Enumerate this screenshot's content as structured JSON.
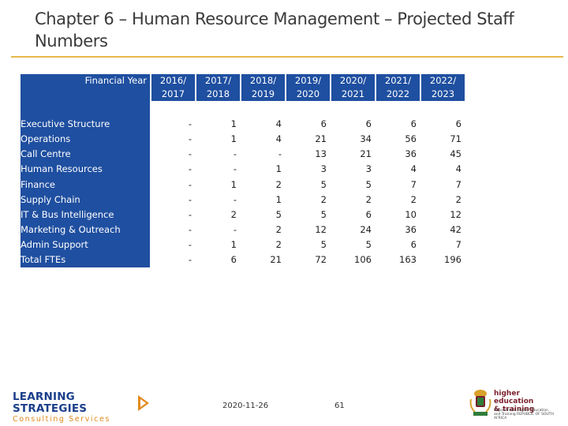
{
  "title": "Chapter 6 – Human Resource Management – Projected Staff Numbers",
  "table": {
    "header_label": "Financial Year",
    "years": [
      {
        "top": "2016/",
        "bottom": "2017"
      },
      {
        "top": "2017/",
        "bottom": "2018"
      },
      {
        "top": "2018/",
        "bottom": "2019"
      },
      {
        "top": "2019/",
        "bottom": "2020"
      },
      {
        "top": "2020/",
        "bottom": "2021"
      },
      {
        "top": "2021/",
        "bottom": "2022"
      },
      {
        "top": "2022/",
        "bottom": "2023"
      }
    ],
    "rows": [
      {
        "label": "Executive Structure",
        "values": [
          "-",
          "1",
          "4",
          "6",
          "6",
          "6",
          "6"
        ]
      },
      {
        "label": "Operations",
        "values": [
          "-",
          "1",
          "4",
          "21",
          "34",
          "56",
          "71"
        ]
      },
      {
        "label": "Call Centre",
        "values": [
          "-",
          "-",
          "-",
          "13",
          "21",
          "36",
          "45"
        ]
      },
      {
        "label": "Human Resources",
        "values": [
          "-",
          "-",
          "1",
          "3",
          "3",
          "4",
          "4"
        ]
      },
      {
        "label": "Finance",
        "values": [
          "-",
          "1",
          "2",
          "5",
          "5",
          "7",
          "7"
        ]
      },
      {
        "label": "Supply Chain",
        "values": [
          "-",
          "-",
          "1",
          "2",
          "2",
          "2",
          "2"
        ]
      },
      {
        "label": "IT & Bus Intelligence",
        "values": [
          "-",
          "2",
          "5",
          "5",
          "6",
          "10",
          "12"
        ]
      },
      {
        "label": "Marketing & Outreach",
        "values": [
          "-",
          "-",
          "2",
          "12",
          "24",
          "36",
          "42"
        ]
      },
      {
        "label": "Admin Support",
        "values": [
          "-",
          "1",
          "2",
          "5",
          "5",
          "6",
          "7"
        ]
      },
      {
        "label": "Total FTEs",
        "values": [
          "-",
          "6",
          "21",
          "72",
          "106",
          "163",
          "196"
        ]
      }
    ]
  },
  "footer": {
    "date": "2020-11-26",
    "page": "61"
  },
  "logos": {
    "left_line1": "LEARNING STRATEGIES",
    "left_line2": "Consulting Services",
    "right_line1": "higher education",
    "right_line2": "& training",
    "right_dept": "Department: Higher Education and Training REPUBLIC OF SOUTH AFRICA"
  },
  "colors": {
    "header_blue": "#1f4fa0",
    "title_rule": "#e6b94a",
    "logo_blue": "#1b3f8b",
    "logo_orange": "#e28a1e"
  }
}
